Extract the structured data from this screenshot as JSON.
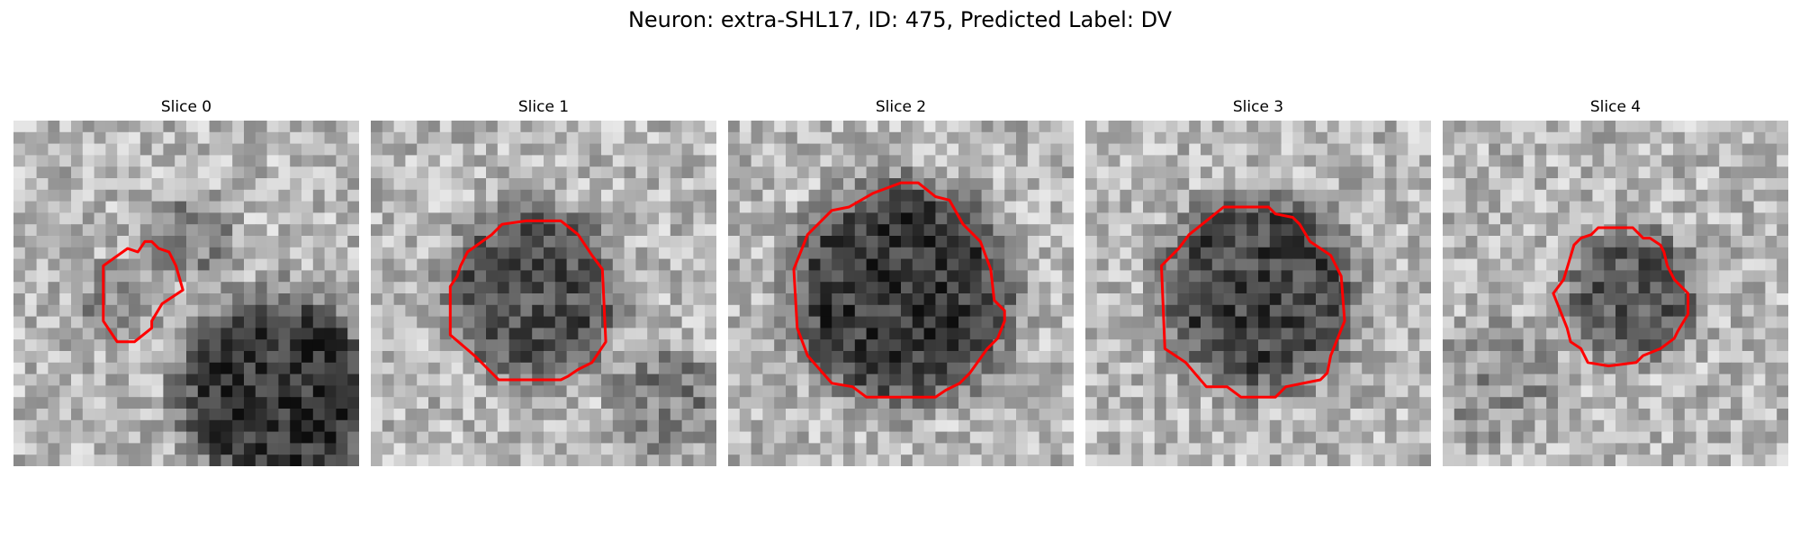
{
  "suptitle": "Neuron: extra-SHL17, ID: 475, Predicted Label: DV",
  "panels": [
    {
      "title": "Slice 0"
    },
    {
      "title": "Slice 1"
    },
    {
      "title": "Slice 2"
    },
    {
      "title": "Slice 3"
    },
    {
      "title": "Slice 4"
    }
  ],
  "colors": {
    "contour": "#ff0000",
    "colormap": "gray"
  }
}
